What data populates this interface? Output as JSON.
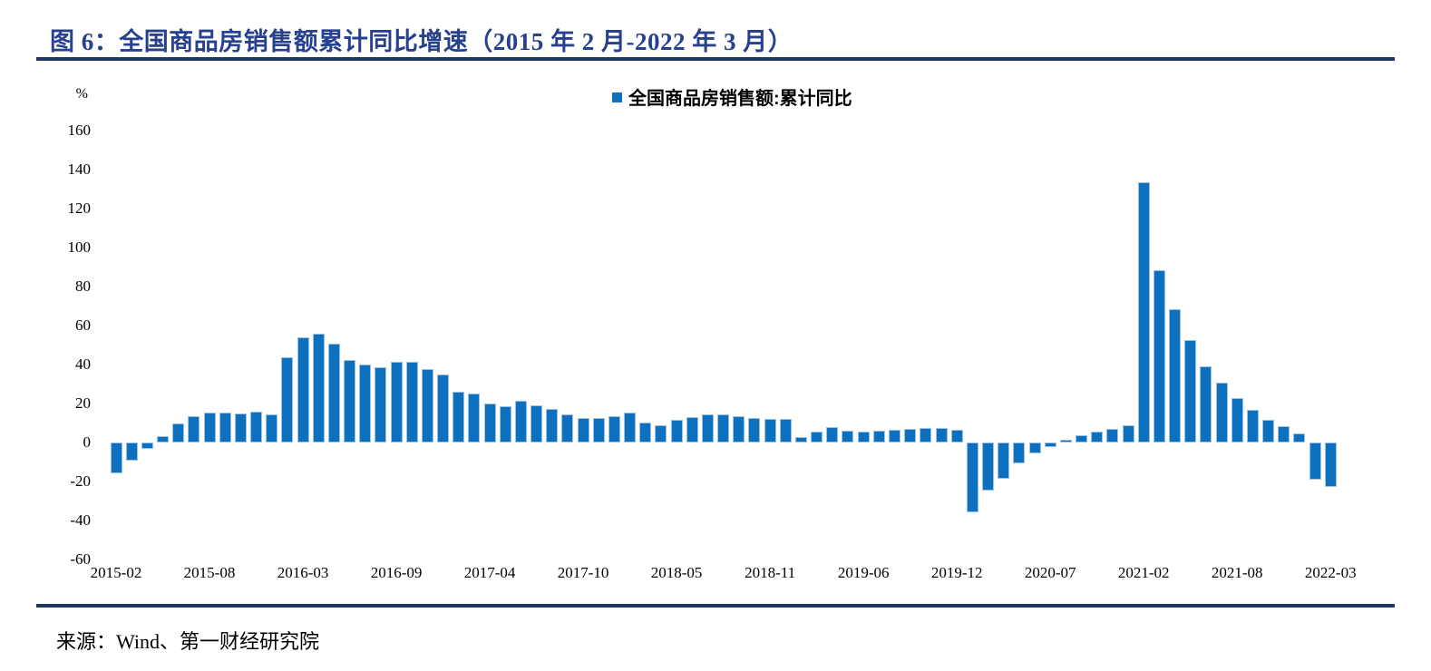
{
  "header": {
    "title": "图 6：全国商品房销售额累计同比增速（2015 年 2 月-2022 年 3 月）"
  },
  "footer": {
    "source": "来源：Wind、第一财经研究院"
  },
  "colors": {
    "bar": "#0d70be",
    "bar_border": "#9cc3e6",
    "title": "#27418f",
    "rule": "#1f3864",
    "text": "#000000"
  },
  "chart_data": {
    "type": "bar",
    "title": "图 6：全国商品房销售额累计同比增速（2015 年 2 月-2022 年 3 月）",
    "unit_label": "%",
    "legend": [
      "全国商品房销售额:累计同比"
    ],
    "legend_position": "top-center",
    "grid": false,
    "ylim": [
      -60,
      160
    ],
    "ytick_step": 20,
    "yticks": [
      160,
      140,
      120,
      100,
      80,
      60,
      40,
      20,
      0,
      -20,
      -40,
      -60
    ],
    "xtick_every": 6,
    "xtick_labels": [
      "2015-02",
      "2015-08",
      "2016-03",
      "2016-09",
      "2017-04",
      "2017-10",
      "2018-05",
      "2018-11",
      "2019-06",
      "2019-12",
      "2020-07",
      "2021-02",
      "2021-08",
      "2022-03"
    ],
    "categories": [
      "2015-02",
      "2015-03",
      "2015-04",
      "2015-05",
      "2015-06",
      "2015-07",
      "2015-08",
      "2015-09",
      "2015-10",
      "2015-11",
      "2015-12",
      "2016-02",
      "2016-03",
      "2016-04",
      "2016-05",
      "2016-06",
      "2016-07",
      "2016-08",
      "2016-09",
      "2016-10",
      "2016-11",
      "2016-12",
      "2017-02",
      "2017-03",
      "2017-04",
      "2017-05",
      "2017-06",
      "2017-07",
      "2017-08",
      "2017-09",
      "2017-10",
      "2017-11",
      "2017-12",
      "2018-02",
      "2018-03",
      "2018-04",
      "2018-05",
      "2018-06",
      "2018-07",
      "2018-08",
      "2018-09",
      "2018-10",
      "2018-11",
      "2018-12",
      "2019-02",
      "2019-03",
      "2019-04",
      "2019-05",
      "2019-06",
      "2019-07",
      "2019-08",
      "2019-09",
      "2019-10",
      "2019-11",
      "2019-12",
      "2020-02",
      "2020-03",
      "2020-04",
      "2020-05",
      "2020-06",
      "2020-07",
      "2020-08",
      "2020-09",
      "2020-10",
      "2020-11",
      "2020-12",
      "2021-02",
      "2021-03",
      "2021-04",
      "2021-05",
      "2021-06",
      "2021-07",
      "2021-08",
      "2021-09",
      "2021-10",
      "2021-11",
      "2021-12",
      "2022-02",
      "2022-03"
    ],
    "values": [
      -15.8,
      -9.2,
      -3.1,
      3.1,
      10.0,
      13.4,
      15.3,
      15.3,
      14.9,
      15.6,
      14.4,
      43.6,
      54.1,
      55.9,
      50.7,
      42.1,
      39.8,
      38.7,
      41.3,
      41.2,
      37.5,
      34.8,
      26.0,
      25.1,
      20.1,
      18.6,
      21.5,
      18.9,
      17.2,
      14.6,
      12.6,
      12.7,
      13.7,
      15.3,
      10.4,
      9.0,
      11.8,
      13.2,
      14.4,
      14.5,
      13.3,
      12.5,
      12.1,
      12.2,
      2.8,
      5.6,
      8.1,
      6.1,
      5.6,
      6.2,
      6.7,
      7.1,
      7.3,
      7.3,
      6.5,
      -35.9,
      -24.7,
      -18.6,
      -10.6,
      -5.4,
      -2.1,
      1.6,
      3.7,
      5.8,
      7.2,
      8.7,
      133.4,
      88.5,
      68.2,
      52.4,
      38.9,
      30.7,
      22.8,
      16.6,
      11.8,
      8.5,
      4.8,
      -19.3,
      -22.7
    ]
  }
}
